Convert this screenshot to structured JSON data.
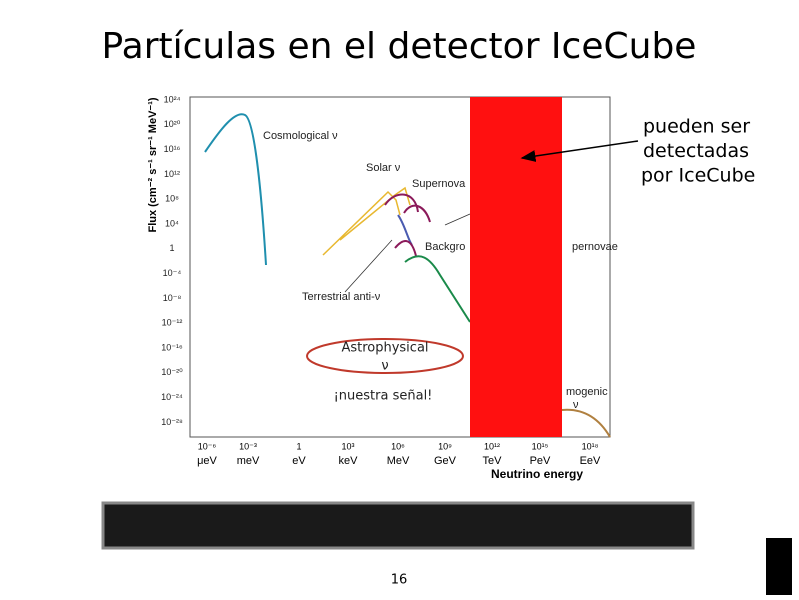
{
  "slide": {
    "title": "Partículas en el detector IceCube",
    "callout": [
      "pueden ser",
      "detectadas",
      "por IceCube"
    ],
    "figure": {
      "y_label": "Flux (cm⁻² s⁻¹ sr⁻¹ MeV⁻¹)",
      "x_label": "Neutrino energy",
      "y_ticks": [
        "10²⁴",
        "10²⁰",
        "10¹⁶",
        "10¹²",
        "10⁸",
        "10⁴",
        "1",
        "10⁻⁴",
        "10⁻⁸",
        "10⁻¹²",
        "10⁻¹⁶",
        "10⁻²⁰",
        "10⁻²⁴",
        "10⁻²⁸"
      ],
      "x_ticks": [
        [
          "10⁻⁶",
          "μeV"
        ],
        [
          "10⁻³",
          "meV"
        ],
        [
          "1",
          "eV"
        ],
        [
          "10³",
          "keV"
        ],
        [
          "10⁶",
          "MeV"
        ],
        [
          "10⁹",
          "GeV"
        ],
        [
          "10¹²",
          "TeV"
        ],
        [
          "10¹⁵",
          "PeV"
        ],
        [
          "10¹⁸",
          "EeV"
        ]
      ],
      "curve_labels": [
        "Cosmological ν",
        "Solar ν",
        "Supernova",
        "Backgro",
        "pernovae",
        "Terrestrial anti-ν",
        "mogenic",
        "ν"
      ]
    },
    "astro": [
      "Astrophysical",
      "ν"
    ],
    "signal": "¡nuestra señal!",
    "page_number": "16"
  }
}
